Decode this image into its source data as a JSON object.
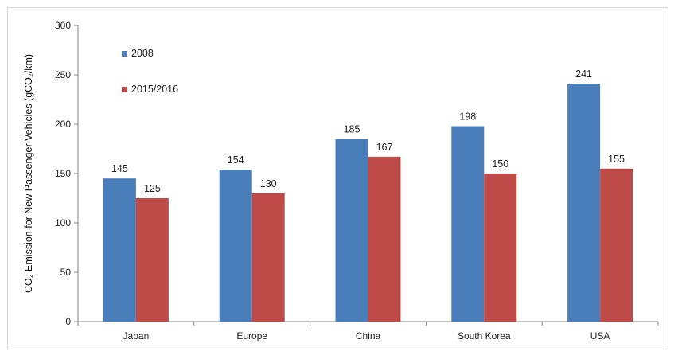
{
  "chart_data": {
    "type": "bar",
    "title": "",
    "xlabel": "",
    "ylabel": "CO₂ Emission  for New Passenger Vehicles (gCO₂/km)",
    "categories": [
      "Japan",
      "Europe",
      "China",
      "South Korea",
      "USA"
    ],
    "series": [
      {
        "name": "2008",
        "values": [
          145,
          154,
          185,
          198,
          241
        ],
        "color": "#4a7ebb"
      },
      {
        "name": "2015/2016",
        "values": [
          125,
          130,
          167,
          150,
          155
        ],
        "color": "#be4b48"
      }
    ],
    "ylim": [
      0,
      300
    ],
    "yticks": [
      0,
      50,
      100,
      150,
      200,
      250,
      300
    ],
    "grid": false,
    "legend_position": "top-left inside plot",
    "data_labels": true
  }
}
